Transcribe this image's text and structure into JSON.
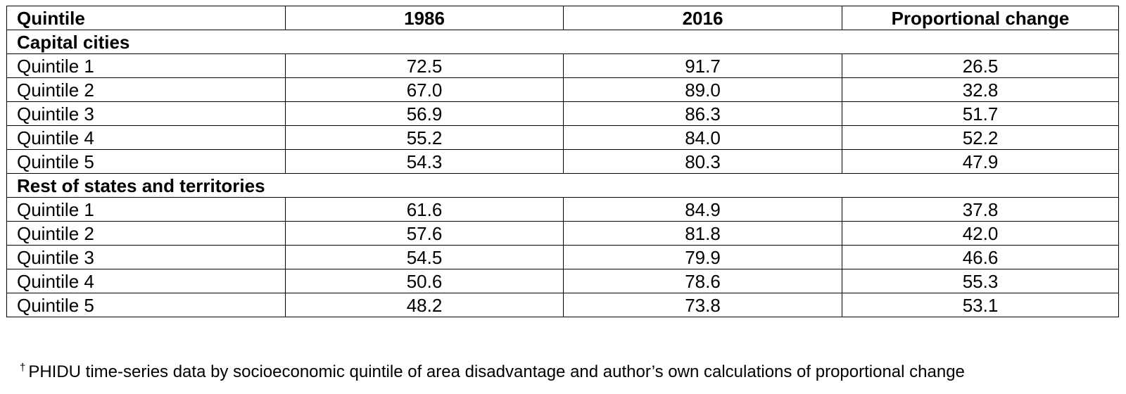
{
  "table": {
    "headers": [
      "Quintile",
      "1986",
      "2016",
      "Proportional change"
    ],
    "sections": [
      {
        "title": "Capital cities",
        "rows": [
          [
            "Quintile 1",
            "72.5",
            "91.7",
            "26.5"
          ],
          [
            "Quintile 2",
            "67.0",
            "89.0",
            "32.8"
          ],
          [
            "Quintile 3",
            "56.9",
            "86.3",
            "51.7"
          ],
          [
            "Quintile 4",
            "55.2",
            "84.0",
            "52.2"
          ],
          [
            "Quintile 5",
            "54.3",
            "80.3",
            "47.9"
          ]
        ]
      },
      {
        "title": "Rest of states and territories",
        "rows": [
          [
            "Quintile 1",
            "61.6",
            "84.9",
            "37.8"
          ],
          [
            "Quintile 2",
            "57.6",
            "81.8",
            "42.0"
          ],
          [
            "Quintile 3",
            "54.5",
            "79.9",
            "46.6"
          ],
          [
            "Quintile 4",
            "50.6",
            "78.6",
            "55.3"
          ],
          [
            "Quintile 5",
            "48.2",
            "73.8",
            "53.1"
          ]
        ]
      }
    ]
  },
  "footnote": {
    "marker": "†",
    "text": "PHIDU time-series data by socioeconomic quintile of area disadvantage and author’s own calculations of proportional change"
  }
}
